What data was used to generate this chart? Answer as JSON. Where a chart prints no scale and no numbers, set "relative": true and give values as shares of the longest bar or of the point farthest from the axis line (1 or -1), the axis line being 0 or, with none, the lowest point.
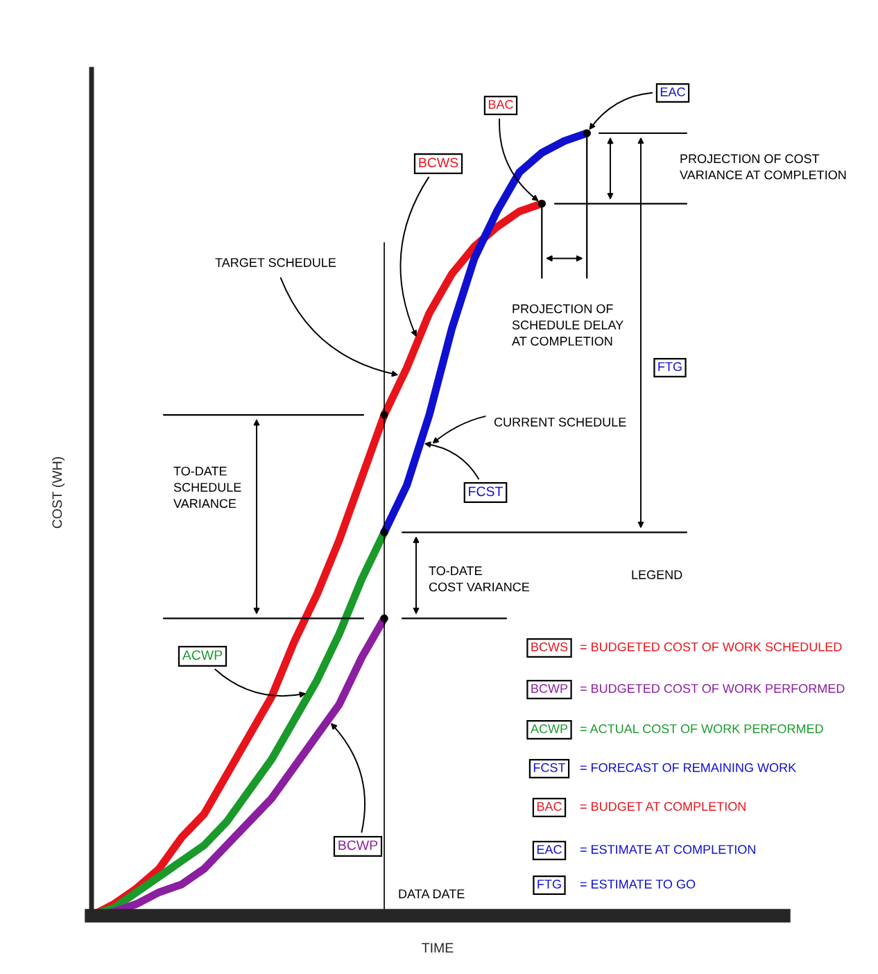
{
  "chart_data": {
    "type": "line",
    "relative": true,
    "xlabel": "TIME",
    "ylabel": "COST (WH)",
    "categories": [
      null,
      null,
      null,
      null,
      null,
      null,
      null,
      null,
      null,
      null,
      null,
      null,
      null,
      null,
      null,
      null,
      null,
      null,
      null,
      null,
      null,
      null,
      null,
      null,
      null,
      null,
      null,
      null,
      null,
      null,
      null
    ],
    "series": [
      {
        "name": "BCWS",
        "color": "#e8141c",
        "values": [
          0,
          0.015,
          0.035,
          0.06,
          0.1,
          0.13,
          0.18,
          0.23,
          0.28,
          0.35,
          0.41,
          0.48,
          0.56,
          0.64,
          0.7,
          0.77,
          0.82,
          0.855,
          0.88,
          0.9,
          0.91,
          null,
          null,
          null,
          null,
          null,
          null,
          null,
          null,
          null,
          null
        ]
      },
      {
        "name": "ACWP",
        "color": "#1a9a2a",
        "values": [
          0,
          0.01,
          0.03,
          0.05,
          0.07,
          0.09,
          0.12,
          0.16,
          0.2,
          0.25,
          0.3,
          0.36,
          0.43,
          0.49,
          null,
          null,
          null,
          null,
          null,
          null,
          null,
          null,
          null,
          null,
          null,
          null,
          null,
          null,
          null,
          null,
          null
        ]
      },
      {
        "name": "BCWP",
        "color": "#8a1fa0",
        "values": [
          0,
          0.005,
          0.015,
          0.03,
          0.04,
          0.06,
          0.09,
          0.12,
          0.15,
          0.19,
          0.23,
          0.27,
          0.33,
          0.38,
          null,
          null,
          null,
          null,
          null,
          null,
          null,
          null,
          null,
          null,
          null,
          null,
          null,
          null,
          null,
          null,
          null
        ]
      },
      {
        "name": "FCST",
        "color": "#1010d0",
        "values": [
          null,
          null,
          null,
          null,
          null,
          null,
          null,
          null,
          null,
          null,
          null,
          null,
          null,
          0.49,
          0.55,
          0.64,
          0.75,
          0.84,
          0.9,
          0.95,
          0.975,
          0.99,
          1,
          null,
          null,
          null,
          null,
          null,
          null,
          null,
          null
        ]
      }
    ],
    "ref_lines": [
      {
        "axis": "y",
        "value": 0.64
      },
      {
        "axis": "y",
        "value": 0.49
      },
      {
        "axis": "y",
        "value": 0.38
      },
      {
        "axis": "y",
        "value": 1
      },
      {
        "axis": "y",
        "value": 0.91
      }
    ],
    "annotations": [
      "BAC",
      "EAC",
      "FTG",
      "TARGET SCHEDULE",
      "CURRENT SCHEDULE",
      "TO-DATE\nSCHEDULE\nVARIANCE",
      "TO-DATE\nCOST VARIANCE",
      "PROJECTION OF COST\nVARIANCE AT COMPLETION",
      "PROJECTION OF\nSCHEDULE DELAY\nAT COMPLETION",
      "DATA DATE",
      "LEGEND",
      "BCWS",
      "BCWP",
      "ACWP",
      "FCST",
      "BAC",
      "EAC",
      "FTG",
      "= BUDGETED COST OF WORK SCHEDULED",
      "= BUDGETED COST OF WORK PERFORMED",
      "= ACTUAL COST OF WORK PERFORMED",
      "= FORECAST OF REMAINING WORK",
      "= BUDGET AT COMPLETION",
      "= ESTIMATE AT COMPLETION",
      "= ESTIMATE TO GO"
    ]
  }
}
